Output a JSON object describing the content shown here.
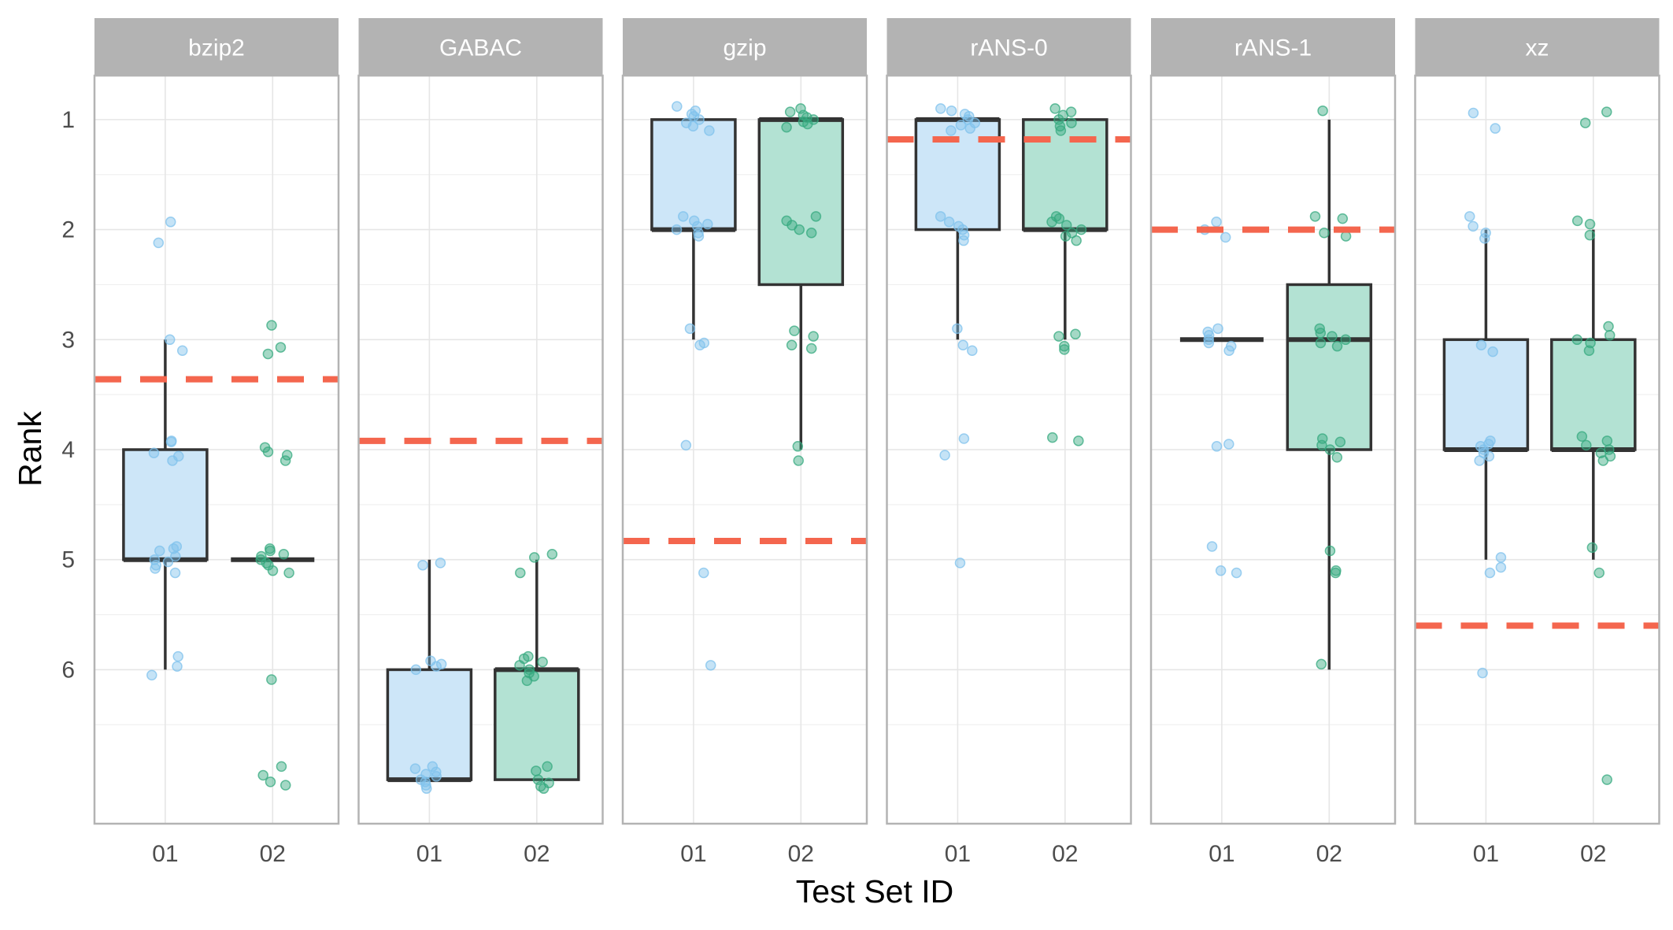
{
  "chart_data": {
    "type": "boxplot",
    "facet_by": "compressor",
    "xlabel": "Test Set ID",
    "ylabel": "Rank",
    "x_categories": [
      "01",
      "02"
    ],
    "y_ticks": [
      1,
      2,
      3,
      4,
      5,
      6
    ],
    "ylim": [
      0.6,
      7.4
    ],
    "y_reversed": true,
    "grid": true,
    "colors": {
      "01": {
        "fill": "#cde6f8",
        "point": "#7fc1ec"
      },
      "02": {
        "fill": "#b3e2d3",
        "point": "#35a97f"
      },
      "box_stroke": "#333333",
      "reference_line": "#f4664e",
      "strip_bg": "#b3b3b3",
      "grid": "#e6e6e6",
      "panel_border": "#b3b3b3"
    },
    "panels": [
      {
        "name": "bzip2",
        "reference_rank": 3.36,
        "groups": [
          {
            "id": "01",
            "box": {
              "whisker_low": 3,
              "q1": 4,
              "median": 5,
              "q3": 5,
              "whisker_high": 6
            },
            "points": [
              1.93,
              2.12,
              3.0,
              3.1,
              3.92,
              3.93,
              4.03,
              4.06,
              4.1,
              4.88,
              4.9,
              4.92,
              4.97,
              5.0,
              5.02,
              5.05,
              5.08,
              5.12,
              5.88,
              5.97,
              6.05
            ]
          },
          {
            "id": "02",
            "box": {
              "whisker_low": 5,
              "q1": 5,
              "median": 5,
              "q3": 5,
              "whisker_high": 5
            },
            "points": [
              2.87,
              3.07,
              3.13,
              3.98,
              4.02,
              4.05,
              4.1,
              4.9,
              4.92,
              4.95,
              4.97,
              5.0,
              5.03,
              5.05,
              5.1,
              5.12,
              6.09,
              6.88,
              6.96,
              7.02,
              7.05
            ]
          }
        ]
      },
      {
        "name": "GABAC",
        "reference_rank": 3.92,
        "groups": [
          {
            "id": "01",
            "box": {
              "whisker_low": 5,
              "q1": 6,
              "median": 7,
              "q3": 7,
              "whisker_high": 7
            },
            "points": [
              5.03,
              5.05,
              5.92,
              5.95,
              5.97,
              6.0,
              6.88,
              6.9,
              6.93,
              6.95,
              6.97,
              7.0,
              7.02,
              7.05,
              7.08
            ]
          },
          {
            "id": "02",
            "box": {
              "whisker_low": 5,
              "q1": 6,
              "median": 6,
              "q3": 7,
              "whisker_high": 7
            },
            "points": [
              4.95,
              4.98,
              5.12,
              5.88,
              5.9,
              5.93,
              5.96,
              6.0,
              6.03,
              6.06,
              6.1,
              6.88,
              6.92,
              7.0,
              7.03,
              7.06,
              7.08
            ]
          }
        ]
      },
      {
        "name": "gzip",
        "reference_rank": 4.83,
        "groups": [
          {
            "id": "01",
            "box": {
              "whisker_low": 1,
              "q1": 1,
              "median": 2,
              "q3": 2,
              "whisker_high": 3
            },
            "points": [
              0.88,
              0.92,
              0.95,
              0.97,
              1.0,
              1.03,
              1.06,
              1.1,
              1.88,
              1.92,
              1.95,
              1.97,
              2.0,
              2.03,
              2.06,
              2.9,
              3.03,
              3.05,
              3.96,
              5.12,
              5.96
            ]
          },
          {
            "id": "02",
            "box": {
              "whisker_low": 1,
              "q1": 1,
              "median": 1,
              "q3": 2.5,
              "whisker_high": 4
            },
            "points": [
              0.9,
              0.93,
              0.96,
              0.98,
              1.0,
              1.02,
              1.04,
              1.07,
              1.88,
              1.92,
              1.96,
              2.0,
              2.03,
              2.92,
              2.97,
              3.05,
              3.08,
              3.97,
              4.1
            ]
          }
        ]
      },
      {
        "name": "rANS-0",
        "reference_rank": 1.18,
        "groups": [
          {
            "id": "01",
            "box": {
              "whisker_low": 1,
              "q1": 1,
              "median": 1,
              "q3": 2,
              "whisker_high": 3
            },
            "points": [
              0.9,
              0.92,
              0.95,
              0.97,
              1.0,
              1.03,
              1.05,
              1.08,
              1.1,
              1.88,
              1.93,
              1.97,
              2.0,
              2.05,
              2.1,
              2.9,
              3.05,
              3.1,
              3.9,
              4.05,
              5.03
            ]
          },
          {
            "id": "02",
            "box": {
              "whisker_low": 1,
              "q1": 1,
              "median": 2,
              "q3": 2,
              "whisker_high": 3
            },
            "points": [
              0.9,
              0.93,
              0.96,
              1.0,
              1.03,
              1.06,
              1.1,
              1.88,
              1.9,
              1.93,
              1.96,
              2.0,
              2.03,
              2.06,
              2.1,
              2.95,
              2.97,
              3.06,
              3.09,
              3.89,
              3.92
            ]
          }
        ]
      },
      {
        "name": "rANS-1",
        "reference_rank": 2.0,
        "groups": [
          {
            "id": "01",
            "box": {
              "whisker_low": 3,
              "q1": 3,
              "median": 3,
              "q3": 3,
              "whisker_high": 3
            },
            "points": [
              1.93,
              2.0,
              2.07,
              2.9,
              2.93,
              2.96,
              3.0,
              3.03,
              3.06,
              3.1,
              3.95,
              3.97,
              4.88,
              5.1,
              5.12
            ]
          },
          {
            "id": "02",
            "box": {
              "whisker_low": 1,
              "q1": 2.5,
              "median": 3,
              "q3": 4,
              "whisker_high": 6
            },
            "points": [
              0.92,
              1.88,
              1.9,
              2.03,
              2.06,
              2.9,
              2.94,
              2.97,
              3.0,
              3.03,
              3.06,
              3.9,
              3.93,
              3.96,
              4.0,
              4.07,
              4.92,
              5.1,
              5.12,
              5.95
            ]
          }
        ]
      },
      {
        "name": "xz",
        "reference_rank": 5.6,
        "groups": [
          {
            "id": "01",
            "box": {
              "whisker_low": 2,
              "q1": 3,
              "median": 4,
              "q3": 4,
              "whisker_high": 5
            },
            "points": [
              0.94,
              1.08,
              1.88,
              1.97,
              2.03,
              2.08,
              3.05,
              3.11,
              3.92,
              3.95,
              3.97,
              4.0,
              4.03,
              4.06,
              4.1,
              4.98,
              5.07,
              5.12,
              6.03
            ]
          },
          {
            "id": "02",
            "box": {
              "whisker_low": 2,
              "q1": 3,
              "median": 4,
              "q3": 4,
              "whisker_high": 5
            },
            "points": [
              0.93,
              1.03,
              1.92,
              1.95,
              2.05,
              2.88,
              2.96,
              3.0,
              3.03,
              3.1,
              3.88,
              3.92,
              3.96,
              4.0,
              4.03,
              4.06,
              4.1,
              4.89,
              5.12,
              7.0
            ]
          }
        ]
      }
    ]
  }
}
